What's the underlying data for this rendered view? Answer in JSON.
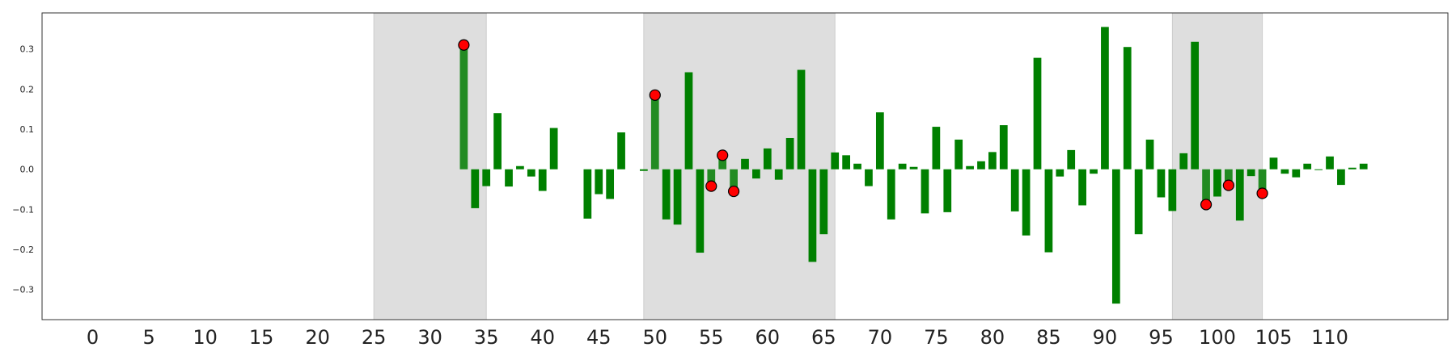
{
  "chart_data": {
    "type": "bar",
    "title": "",
    "xlabel": "",
    "ylabel": "",
    "xlim": [
      -4.5,
      120.5
    ],
    "ylim": [
      -0.375,
      0.39
    ],
    "x_ticks": [
      0,
      5,
      10,
      15,
      20,
      25,
      30,
      35,
      40,
      45,
      50,
      55,
      60,
      65,
      70,
      75,
      80,
      85,
      90,
      95,
      100,
      105,
      110
    ],
    "y_ticks": [
      -0.3,
      -0.2,
      -0.1,
      0.0,
      0.1,
      0.2,
      0.3
    ],
    "y_tick_labels": [
      "−0.3",
      "−0.2",
      "−0.1",
      "0.0",
      "0.1",
      "0.2",
      "0.3"
    ],
    "grid": false,
    "legend": "none",
    "colors": {
      "bar": "#008000",
      "highlight_bar": "#228b22",
      "region": "#dedede",
      "marker_fill": "#ff0000",
      "marker_edge": "#000000"
    },
    "shaded_regions": [
      [
        25,
        35
      ],
      [
        49,
        66
      ],
      [
        96,
        104
      ]
    ],
    "x": [
      33,
      34,
      35,
      36,
      37,
      38,
      39,
      40,
      41,
      44,
      45,
      46,
      47,
      49,
      50,
      51,
      52,
      53,
      54,
      55,
      56,
      57,
      58,
      59,
      60,
      61,
      62,
      63,
      64,
      65,
      66,
      67,
      68,
      69,
      70,
      71,
      72,
      73,
      74,
      75,
      76,
      77,
      78,
      79,
      80,
      81,
      82,
      83,
      84,
      85,
      86,
      87,
      88,
      89,
      90,
      91,
      92,
      93,
      94,
      95,
      96,
      97,
      98,
      99,
      100,
      101,
      102,
      103,
      104,
      105,
      106,
      107,
      108,
      109,
      110,
      111,
      112,
      113
    ],
    "values": [
      0.31,
      -0.097,
      -0.042,
      0.14,
      -0.043,
      0.008,
      -0.018,
      -0.054,
      0.103,
      -0.123,
      -0.062,
      -0.074,
      0.092,
      -0.004,
      0.185,
      -0.125,
      -0.138,
      0.242,
      -0.208,
      -0.042,
      0.035,
      -0.055,
      0.026,
      -0.023,
      0.052,
      -0.026,
      0.078,
      0.248,
      -0.231,
      -0.162,
      0.042,
      0.035,
      0.014,
      -0.042,
      0.142,
      -0.125,
      0.014,
      0.006,
      -0.11,
      0.106,
      -0.107,
      0.074,
      0.008,
      0.02,
      0.043,
      0.11,
      -0.105,
      -0.165,
      0.278,
      -0.207,
      -0.018,
      0.048,
      -0.09,
      -0.011,
      0.355,
      -0.335,
      0.305,
      -0.162,
      0.074,
      -0.07,
      -0.104,
      0.04,
      0.318,
      -0.088,
      -0.068,
      -0.04,
      -0.128,
      -0.017,
      -0.06,
      0.029,
      -0.011,
      -0.02,
      0.014,
      0.0,
      0.032,
      -0.039,
      0.004,
      0.014
    ],
    "highlighted_x": [
      33,
      50,
      55,
      56,
      57,
      99,
      101,
      104
    ]
  }
}
